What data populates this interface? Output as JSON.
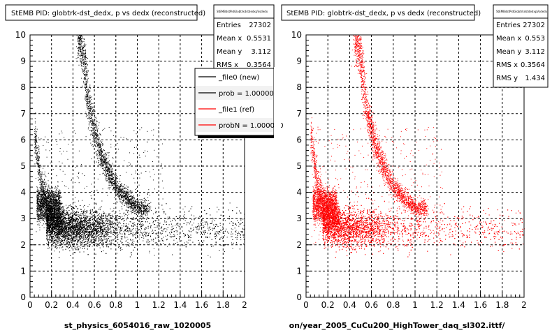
{
  "panels": [
    {
      "title": "StEMB PID: globtrk-dst_dedx,  p vs dedx (reconstructed)",
      "xlabel": "st_physics_6054016_raw_1020005",
      "color": "#000000",
      "stats": {
        "header": "StEMBdstPidGlobtrkdstdedxpVsdedx",
        "rows": [
          {
            "label": "Entries",
            "value": "27302"
          },
          {
            "label": "Mean x",
            "value": "0.5531"
          },
          {
            "label": "Mean y",
            "value": "3.112"
          },
          {
            "label": "RMS x",
            "value": "0.3564"
          }
        ]
      },
      "legend": [
        {
          "label": "_file0 (new)",
          "color": "#000000"
        },
        {
          "label": "prob = 1.000000",
          "color": "#000000"
        },
        {
          "label": "_file1 (ref)",
          "color": "#ff0000"
        },
        {
          "label": "probN = 1.000000",
          "color": "#ff0000"
        }
      ]
    },
    {
      "title": "StEMB PID: globtrk-dst_dedx,  p vs dedx (reconstructed)",
      "xlabel": "on/year_2005_CuCu200_HighTower_daq_sl302.ittf/",
      "color": "#ff0000",
      "stats": {
        "header": "StEMBdstPidGlobtrkdstdedxpVsdedx",
        "rows": [
          {
            "label": "Entries",
            "value": "27302"
          },
          {
            "label": "Mean x",
            "value": "0.553"
          },
          {
            "label": "Mean y",
            "value": "3.112"
          },
          {
            "label": "RMS x",
            "value": "0.3564"
          },
          {
            "label": "RMS y",
            "value": "1.434"
          }
        ]
      },
      "legend": []
    }
  ],
  "chart_data": [
    {
      "type": "scatter",
      "title": "StEMB PID: globtrk-dst_dedx,  p vs dedx (reconstructed)",
      "xlabel": "st_physics_6054016_raw_1020005",
      "ylabel": "",
      "xlim": [
        0,
        2
      ],
      "ylim": [
        0,
        10
      ],
      "xticks": [
        "0",
        "0.2",
        "0.4",
        "0.6",
        "0.8",
        "1",
        "1.2",
        "1.4",
        "1.6",
        "1.8",
        "2"
      ],
      "yticks": [
        "0",
        "1",
        "2",
        "3",
        "4",
        "5",
        "6",
        "7",
        "8",
        "9",
        "10"
      ],
      "grid": true,
      "entries": 27302,
      "mean_x": 0.5531,
      "mean_y": 3.112,
      "rms_x": 0.3564,
      "point_color": "#000000",
      "legend_position": "top-right",
      "bands": [
        {
          "description": "minimum ionizing band",
          "x_range": [
            0.15,
            2.0
          ],
          "y_center": 2.6,
          "y_spread": 0.35
        },
        {
          "description": "kaon band",
          "x": [
            0.48,
            0.55,
            0.65,
            0.8,
            1.0
          ],
          "y": [
            9.8,
            7.2,
            5.5,
            4.2,
            3.4
          ]
        },
        {
          "description": "pion/electron band at low p",
          "x": [
            0.05,
            0.1,
            0.15,
            0.2,
            0.3
          ],
          "y": [
            6.0,
            4.3,
            3.6,
            3.2,
            2.9
          ]
        }
      ]
    },
    {
      "type": "scatter",
      "title": "StEMB PID: globtrk-dst_dedx,  p vs dedx (reconstructed)",
      "xlabel": "on/year_2005_CuCu200_HighTower_daq_sl302.ittf/",
      "ylabel": "",
      "xlim": [
        0,
        2
      ],
      "ylim": [
        0,
        10
      ],
      "xticks": [
        "0",
        "0.2",
        "0.4",
        "0.6",
        "0.8",
        "1",
        "1.2",
        "1.4",
        "1.6",
        "1.8",
        "2"
      ],
      "yticks": [
        "0",
        "1",
        "2",
        "3",
        "4",
        "5",
        "6",
        "7",
        "8",
        "9",
        "10"
      ],
      "grid": true,
      "entries": 27302,
      "mean_x": 0.553,
      "mean_y": 3.112,
      "rms_x": 0.3564,
      "rms_y": 1.434,
      "point_color": "#ff0000",
      "bands": [
        {
          "description": "minimum ionizing band",
          "x_range": [
            0.15,
            2.0
          ],
          "y_center": 2.6,
          "y_spread": 0.35
        },
        {
          "description": "kaon band",
          "x": [
            0.48,
            0.55,
            0.65,
            0.8,
            1.0
          ],
          "y": [
            9.8,
            7.2,
            5.5,
            4.2,
            3.4
          ]
        },
        {
          "description": "pion/electron band at low p",
          "x": [
            0.05,
            0.1,
            0.15,
            0.2,
            0.3
          ],
          "y": [
            6.0,
            4.3,
            3.6,
            3.2,
            2.9
          ]
        }
      ]
    }
  ]
}
